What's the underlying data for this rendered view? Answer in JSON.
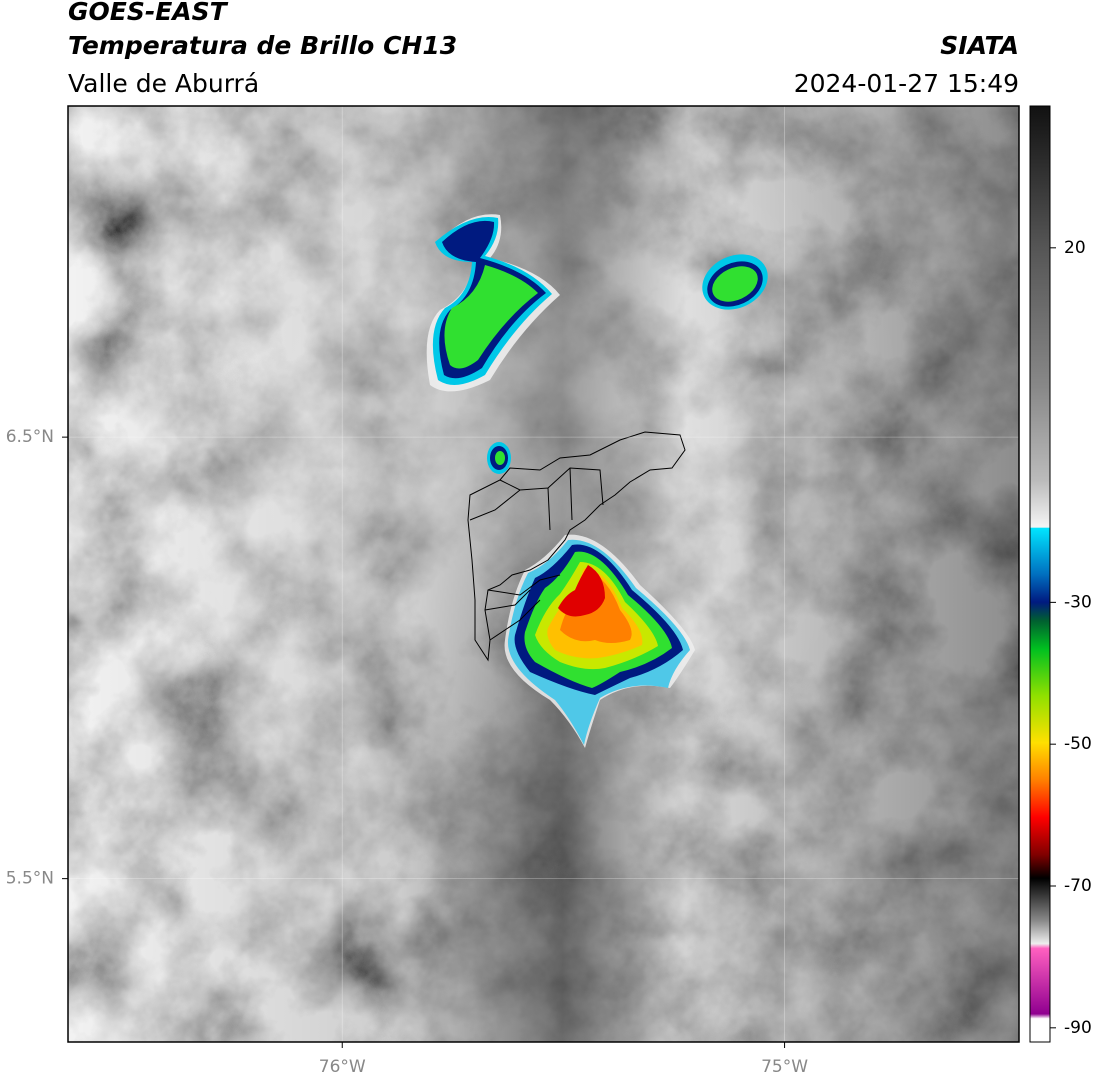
{
  "header": {
    "title": "GOES-EAST",
    "subtitle": "Temperatura de Brillo CH13",
    "region": "Valle de Aburrá",
    "source": "SIATA",
    "datetime": "2024-01-27 15:49"
  },
  "map": {
    "xlim": [
      -76.62,
      -74.47
    ],
    "ylim": [
      5.13,
      7.25
    ],
    "xticks": [
      {
        "value": -76,
        "label": "76°W"
      },
      {
        "value": -75,
        "label": "75°W"
      }
    ],
    "yticks": [
      {
        "value": 6.5,
        "label": "6.5°N"
      },
      {
        "value": 5.5,
        "label": "5.5°N"
      }
    ],
    "grid": true
  },
  "colorbar": {
    "lim": [
      -92,
      40
    ],
    "ticks": [
      20,
      -30,
      -50,
      -70,
      -90
    ]
  }
}
